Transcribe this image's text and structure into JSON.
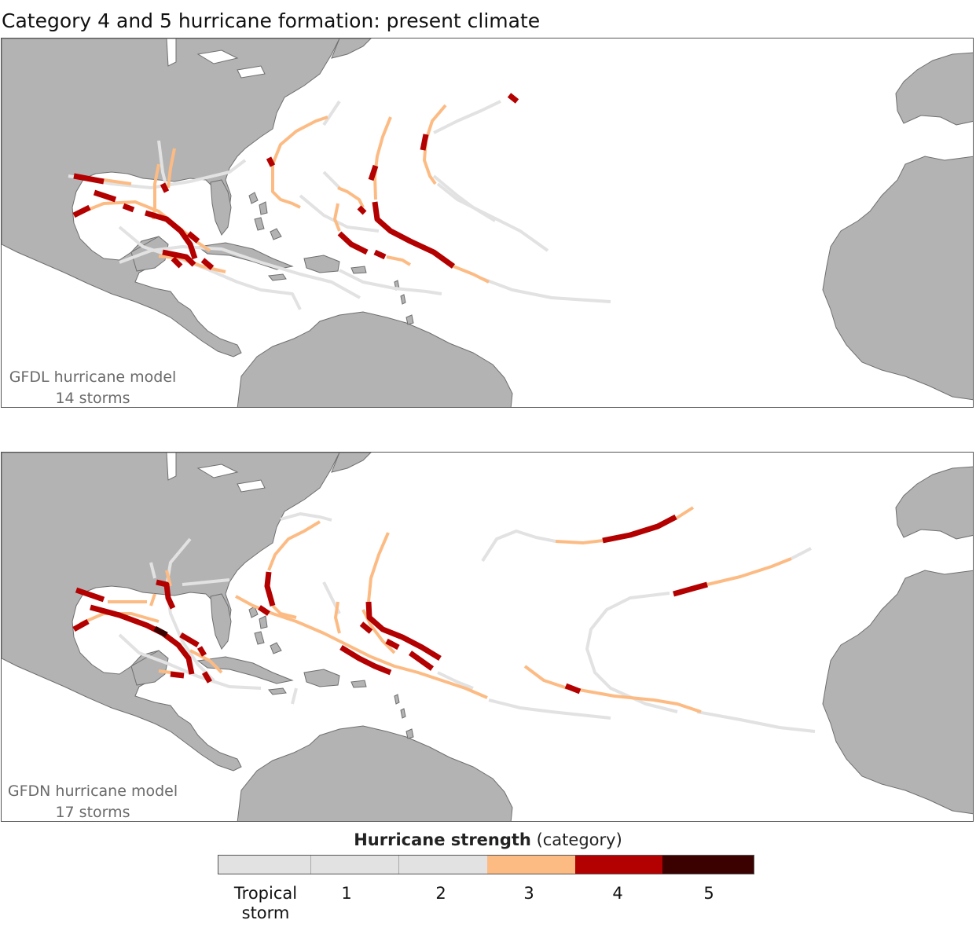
{
  "title": "Category 4 and 5 hurricane formation: present climate",
  "colors": {
    "land": "#b3b3b3",
    "coast": "#6f6f6f",
    "ocean": "#ffffff",
    "tropical_storm": "#e2e2e2",
    "cat1": "#e2e2e2",
    "cat2": "#e2e2e2",
    "cat3": "#fdbb84",
    "cat4": "#b30000",
    "cat5": "#3b0000"
  },
  "panels": [
    {
      "model": "GFDL hurricane model",
      "storms": "14 storms"
    },
    {
      "model": "GFDN hurricane model",
      "storms": "17 storms"
    }
  ],
  "legend": {
    "title_bold": "Hurricane strength",
    "title_rest": " (category)",
    "classes": [
      {
        "label": "Tropical storm",
        "color": "#e2e2e2"
      },
      {
        "label": "1",
        "color": "#e2e2e2"
      },
      {
        "label": "2",
        "color": "#e2e2e2"
      },
      {
        "label": "3",
        "color": "#fdbb84"
      },
      {
        "label": "4",
        "color": "#b30000"
      },
      {
        "label": "5",
        "color": "#3b0000"
      }
    ]
  }
}
